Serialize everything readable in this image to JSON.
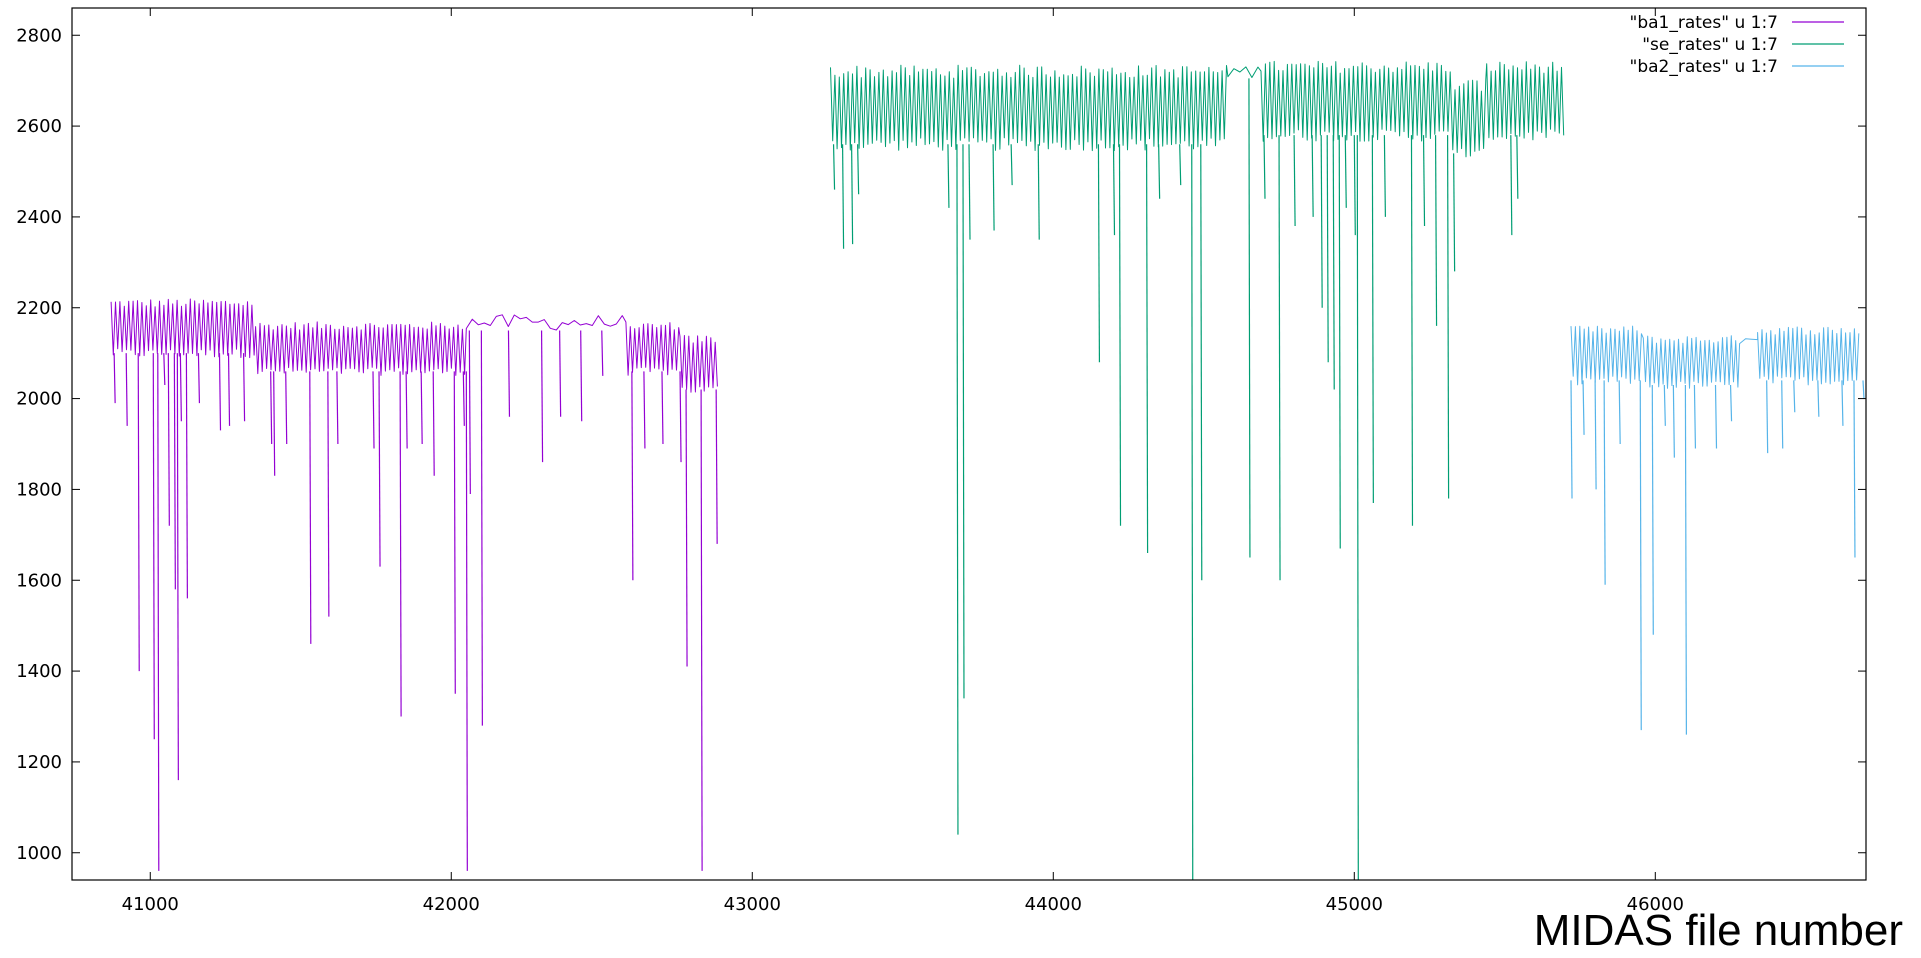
{
  "chart_data": {
    "type": "line",
    "title": "",
    "xlabel": "MIDAS file number",
    "ylabel": "",
    "xlim": [
      40740,
      46700
    ],
    "ylim": [
      940,
      2860
    ],
    "xticks": [
      41000,
      42000,
      43000,
      44000,
      45000,
      46000
    ],
    "yticks": [
      1000,
      1200,
      1400,
      1600,
      1800,
      2000,
      2200,
      2400,
      2600,
      2800
    ],
    "grid": false,
    "legend_position": "top-right",
    "series": [
      {
        "name": "\"ba1_rates\" u 1:7",
        "color": "#9400d3",
        "x_start": 40870,
        "x_end": 42890,
        "bands": [
          {
            "x0": 40870,
            "x1": 41350,
            "lo": 2100,
            "hi": 2210
          },
          {
            "x0": 41350,
            "x1": 42050,
            "lo": 2060,
            "hi": 2160
          },
          {
            "x0": 42050,
            "x1": 42580,
            "lo": 2150,
            "hi": 2185,
            "sparse": true
          },
          {
            "x0": 42580,
            "x1": 42760,
            "lo": 2060,
            "hi": 2160
          },
          {
            "x0": 42760,
            "x1": 42890,
            "lo": 2020,
            "hi": 2130
          }
        ],
        "dips": [
          [
            40880,
            1990
          ],
          [
            40920,
            1940
          ],
          [
            40960,
            1400
          ],
          [
            41010,
            1250
          ],
          [
            41025,
            960
          ],
          [
            41045,
            2030
          ],
          [
            41060,
            1720
          ],
          [
            41080,
            1580
          ],
          [
            41090,
            1160
          ],
          [
            41100,
            1950
          ],
          [
            41120,
            1560
          ],
          [
            41160,
            1990
          ],
          [
            41230,
            1930
          ],
          [
            41260,
            1940
          ],
          [
            41310,
            1950
          ],
          [
            41400,
            1900
          ],
          [
            41410,
            1830
          ],
          [
            41450,
            1900
          ],
          [
            41530,
            1460
          ],
          [
            41590,
            1520
          ],
          [
            41620,
            1900
          ],
          [
            41740,
            1890
          ],
          [
            41760,
            1630
          ],
          [
            41830,
            1300
          ],
          [
            41850,
            1890
          ],
          [
            41900,
            1900
          ],
          [
            41940,
            1830
          ],
          [
            42010,
            1350
          ],
          [
            42040,
            1940
          ],
          [
            42050,
            960
          ],
          [
            42060,
            1790
          ],
          [
            42100,
            1280
          ],
          [
            42190,
            1960
          ],
          [
            42300,
            1860
          ],
          [
            42360,
            1960
          ],
          [
            42430,
            1950
          ],
          [
            42500,
            2050
          ],
          [
            42600,
            1600
          ],
          [
            42640,
            1890
          ],
          [
            42700,
            1900
          ],
          [
            42760,
            1860
          ],
          [
            42780,
            1410
          ],
          [
            42830,
            960
          ],
          [
            42880,
            1680
          ]
        ]
      },
      {
        "name": "\"se_rates\" u 1:7",
        "color": "#009e73",
        "x_start": 43260,
        "x_end": 45700,
        "bands": [
          {
            "x0": 43260,
            "x1": 44580,
            "lo": 2560,
            "hi": 2720
          },
          {
            "x0": 44580,
            "x1": 44690,
            "lo": 2705,
            "hi": 2735,
            "sparse": true
          },
          {
            "x0": 44690,
            "x1": 45320,
            "lo": 2580,
            "hi": 2730
          },
          {
            "x0": 45320,
            "x1": 45440,
            "lo": 2540,
            "hi": 2690
          },
          {
            "x0": 45440,
            "x1": 45700,
            "lo": 2580,
            "hi": 2730
          }
        ],
        "dips": [
          [
            43270,
            2460
          ],
          [
            43300,
            2330
          ],
          [
            43330,
            2340
          ],
          [
            43350,
            2450
          ],
          [
            43650,
            2420
          ],
          [
            43680,
            1040
          ],
          [
            43700,
            1340
          ],
          [
            43720,
            2350
          ],
          [
            43800,
            2370
          ],
          [
            43860,
            2470
          ],
          [
            43950,
            2350
          ],
          [
            44150,
            2080
          ],
          [
            44200,
            2360
          ],
          [
            44220,
            1720
          ],
          [
            44310,
            1660
          ],
          [
            44350,
            2440
          ],
          [
            44420,
            2470
          ],
          [
            44460,
            940
          ],
          [
            44490,
            1600
          ],
          [
            44650,
            1650
          ],
          [
            44700,
            2440
          ],
          [
            44750,
            1600
          ],
          [
            44800,
            2380
          ],
          [
            44860,
            2400
          ],
          [
            44890,
            2200
          ],
          [
            44910,
            2080
          ],
          [
            44930,
            2020
          ],
          [
            44950,
            1670
          ],
          [
            44970,
            2420
          ],
          [
            45000,
            2360
          ],
          [
            45010,
            940
          ],
          [
            45060,
            1770
          ],
          [
            45100,
            2400
          ],
          [
            45190,
            1720
          ],
          [
            45230,
            2380
          ],
          [
            45270,
            2160
          ],
          [
            45310,
            1780
          ],
          [
            45330,
            2280
          ],
          [
            45520,
            2360
          ],
          [
            45540,
            2440
          ]
        ]
      },
      {
        "name": "\"ba2_rates\" u 1:7",
        "color": "#56b4e9",
        "x_start": 45720,
        "x_end": 46680,
        "bands": [
          {
            "x0": 45720,
            "x1": 45960,
            "lo": 2040,
            "hi": 2150
          },
          {
            "x0": 45960,
            "x1": 46280,
            "lo": 2030,
            "hi": 2130
          },
          {
            "x0": 46280,
            "x1": 46340,
            "lo": 2120,
            "hi": 2135,
            "sparse": true
          },
          {
            "x0": 46340,
            "x1": 46680,
            "lo": 2040,
            "hi": 2150
          }
        ],
        "dips": [
          [
            45720,
            1780
          ],
          [
            45760,
            1920
          ],
          [
            45800,
            1800
          ],
          [
            45830,
            1590
          ],
          [
            45880,
            1900
          ],
          [
            45950,
            1270
          ],
          [
            45990,
            1480
          ],
          [
            46030,
            1940
          ],
          [
            46060,
            1870
          ],
          [
            46100,
            1260
          ],
          [
            46130,
            1890
          ],
          [
            46200,
            1890
          ],
          [
            46250,
            1950
          ],
          [
            46370,
            1880
          ],
          [
            46420,
            1890
          ],
          [
            46460,
            1970
          ],
          [
            46540,
            1960
          ],
          [
            46620,
            1940
          ],
          [
            46660,
            1650
          ],
          [
            46690,
            2000
          ]
        ]
      }
    ]
  }
}
